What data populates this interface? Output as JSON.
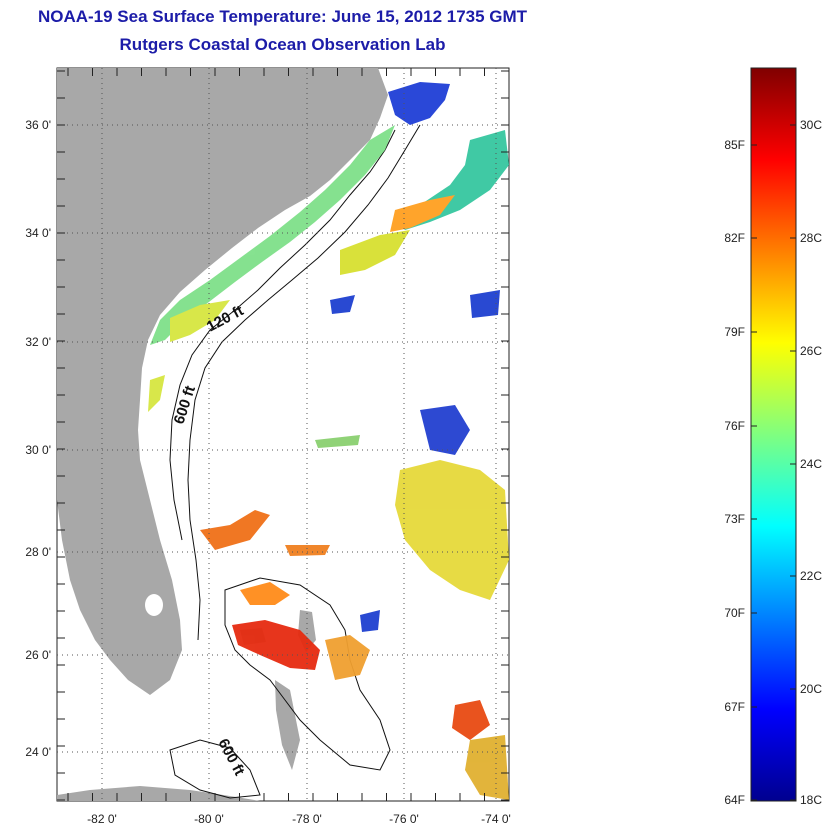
{
  "title": {
    "line1": "NOAA-19 Sea Surface Temperature:  June 15, 2012 1735 GMT",
    "line2": "Rutgers Coastal Ocean Observation Lab"
  },
  "map": {
    "lon_ticks": [
      "-82 0'",
      "-80 0'",
      "-78 0'",
      "-76 0'",
      "-74 0'"
    ],
    "lat_ticks": [
      "36 0'",
      "34 0'",
      "32 0'",
      "30 0'",
      "28 0'",
      "26 0'",
      "24 0'"
    ],
    "contour_labels": [
      "120 ft",
      "600 ft",
      "600 ft"
    ],
    "land_color": "#a8a8a8"
  },
  "colorbar": {
    "fahrenheit_labels": [
      "85F",
      "82F",
      "79F",
      "76F",
      "73F",
      "70F",
      "67F",
      "64F"
    ],
    "celsius_labels": [
      "30C",
      "28C",
      "26C",
      "24C",
      "22C",
      "20C",
      "18C"
    ],
    "colormap": "jet"
  }
}
